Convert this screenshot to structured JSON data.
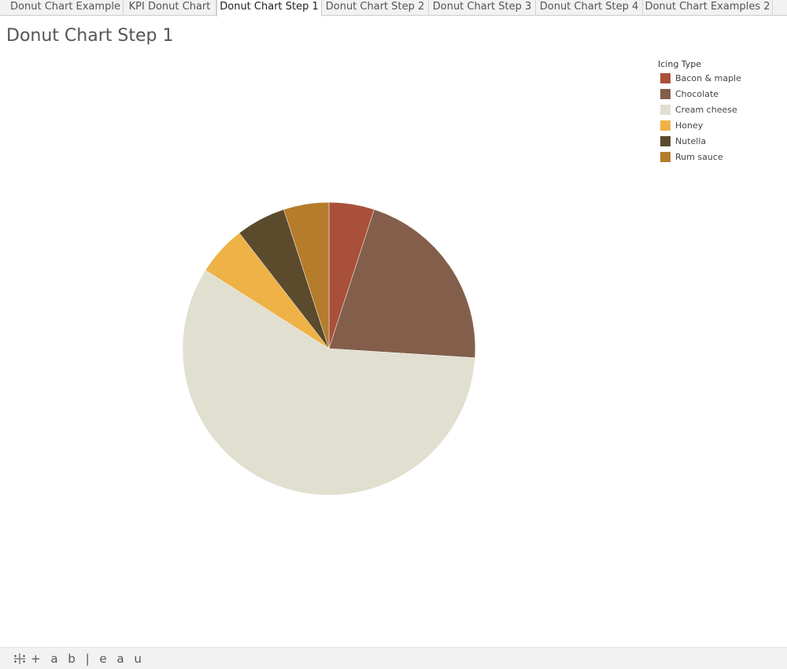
{
  "tabs": [
    {
      "label": "Donut Chart Example",
      "active": false
    },
    {
      "label": "KPI Donut Chart",
      "active": false
    },
    {
      "label": "Donut Chart Step 1",
      "active": true
    },
    {
      "label": "Donut Chart Step 2",
      "active": false
    },
    {
      "label": "Donut Chart Step 3",
      "active": false
    },
    {
      "label": "Donut Chart Step 4",
      "active": false
    },
    {
      "label": "Donut Chart Examples 2",
      "active": false
    }
  ],
  "sheet": {
    "title": "Donut Chart Step 1"
  },
  "legend": {
    "title": "Icing Type"
  },
  "chart_data": {
    "type": "pie",
    "categories": [
      "Bacon & maple",
      "Chocolate",
      "Cream cheese",
      "Honey",
      "Nutella",
      "Rum sauce"
    ],
    "values": [
      5.0,
      21.0,
      58.0,
      5.5,
      5.5,
      5.0
    ],
    "colors": [
      "#a9503a",
      "#835f4b",
      "#e0dfd0",
      "#eeb247",
      "#5c4a2d",
      "#b47c2b"
    ],
    "legend_title": "Icing Type",
    "legend_position": "top-right",
    "start": "12 o'clock, clockwise"
  },
  "footer": {
    "brand": "+ a b | e a u",
    "icon": "tableau-logo-icon"
  }
}
